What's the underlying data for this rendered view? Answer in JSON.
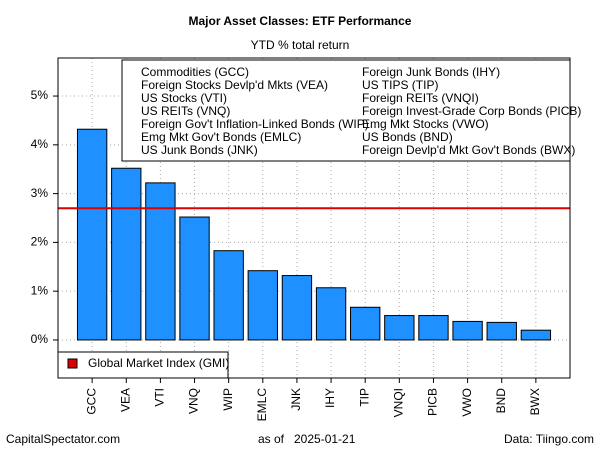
{
  "chart_data": {
    "type": "bar",
    "title": "Major Asset Classes: ETF Performance",
    "subtitle": "YTD % total return",
    "categories": [
      "GCC",
      "VEA",
      "VTI",
      "VNQ",
      "WIP",
      "EMLC",
      "JNK",
      "IHY",
      "TIP",
      "VNQI",
      "PICB",
      "VWO",
      "BND",
      "BWX"
    ],
    "values": [
      4.32,
      3.52,
      3.22,
      2.52,
      1.83,
      1.42,
      1.32,
      1.07,
      0.67,
      0.5,
      0.5,
      0.38,
      0.36,
      0.2
    ],
    "color": "#1e90ff",
    "legend_labels": [
      "Commodities (GCC)",
      "Foreign Stocks Devlp'd Mkts (VEA)",
      "US Stocks (VTI)",
      "US REITs (VNQ)",
      "Foreign Gov't Inflation-Linked Bonds (WIP)",
      "Emg Mkt Gov't Bonds (EMLC)",
      "US Junk Bonds (JNK)",
      "Foreign Junk Bonds (IHY)",
      "US TIPS (TIP)",
      "Foreign REITs (VNQI)",
      "Foreign Invest-Grade Corp Bonds (PICB)",
      "Emg Mkt Stocks (VWO)",
      "US Bonds (BND)",
      "Foreign Devlp'd Mkt Gov't Bonds (BWX)"
    ],
    "reference_line": {
      "name": "Global Market Index (GMI)",
      "value": 2.7,
      "color": "#dd0000"
    },
    "ylim": [
      -0.78,
      5.78
    ],
    "yticks": [
      {
        "value": 0,
        "label": "0%"
      },
      {
        "value": 1,
        "label": "1%"
      },
      {
        "value": 2,
        "label": "2%"
      },
      {
        "value": 3,
        "label": "3%"
      },
      {
        "value": 4,
        "label": "4%"
      },
      {
        "value": 5,
        "label": "5%"
      }
    ],
    "grid": true,
    "footer": {
      "left": "CapitalSpectator.com",
      "as_of_label": "as of",
      "date": "2025-01-21",
      "right": "Data: Tiingo.com"
    }
  }
}
